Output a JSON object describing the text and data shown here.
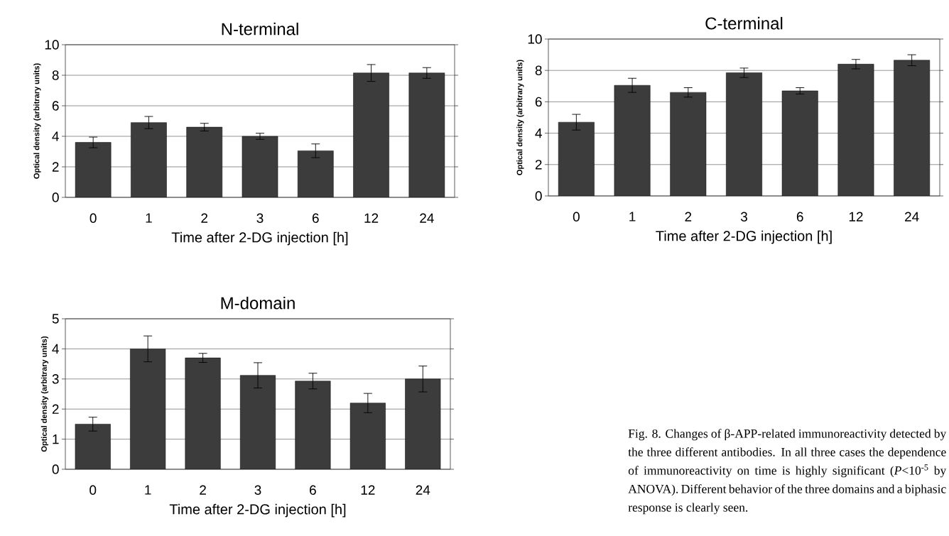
{
  "chart_data": [
    {
      "type": "bar",
      "title": "N-terminal",
      "xlabel": "Time after 2-DG injection [h]",
      "ylabel": "Optical density (arbitrary units)",
      "categories": [
        "0",
        "1",
        "2",
        "3",
        "6",
        "12",
        "24"
      ],
      "values": [
        3.6,
        4.9,
        4.6,
        4.0,
        3.05,
        8.15,
        8.15
      ],
      "errors": [
        0.35,
        0.4,
        0.25,
        0.2,
        0.45,
        0.55,
        0.35
      ],
      "color": "#3c3c3c",
      "ylim": [
        0,
        10
      ],
      "yticks": [
        0,
        2,
        4,
        6,
        8,
        10
      ],
      "grid": "y"
    },
    {
      "type": "bar",
      "title": "C-terminal",
      "xlabel": "Time after 2-DG injection [h]",
      "ylabel": "Optical density (arbitrary units)",
      "categories": [
        "0",
        "1",
        "2",
        "3",
        "6",
        "12",
        "24"
      ],
      "values": [
        4.7,
        7.05,
        6.6,
        7.85,
        6.7,
        8.4,
        8.65
      ],
      "errors": [
        0.5,
        0.45,
        0.3,
        0.3,
        0.2,
        0.3,
        0.35
      ],
      "color": "#3c3c3c",
      "ylim": [
        0,
        10
      ],
      "yticks": [
        0,
        2,
        4,
        6,
        8,
        10
      ],
      "grid": "y"
    },
    {
      "type": "bar",
      "title": "M-domain",
      "xlabel": "Time after 2-DG injection [h]",
      "ylabel": "Optical density (arbitrary units)",
      "categories": [
        "0",
        "1",
        "2",
        "3",
        "6",
        "12",
        "24"
      ],
      "values": [
        1.5,
        4.0,
        3.7,
        3.12,
        2.93,
        2.2,
        3.0
      ],
      "errors": [
        0.23,
        0.43,
        0.15,
        0.42,
        0.26,
        0.32,
        0.43
      ],
      "color": "#3c3c3c",
      "ylim": [
        0,
        5
      ],
      "yticks": [
        0,
        1,
        2,
        3,
        4,
        5
      ],
      "grid": "y"
    },
    {
      "type": "other",
      "annotations": [
        "Fig. 8. Changes of β-APP-related immunoreactivity detected by the three different antibodies. In all three cases the dependence of immunoreactivity on time is highly significant (*P*<10$^{-5}$ by ANOVA). Different behavior of the three domains and a biphasic response is clearly seen."
      ]
    }
  ]
}
